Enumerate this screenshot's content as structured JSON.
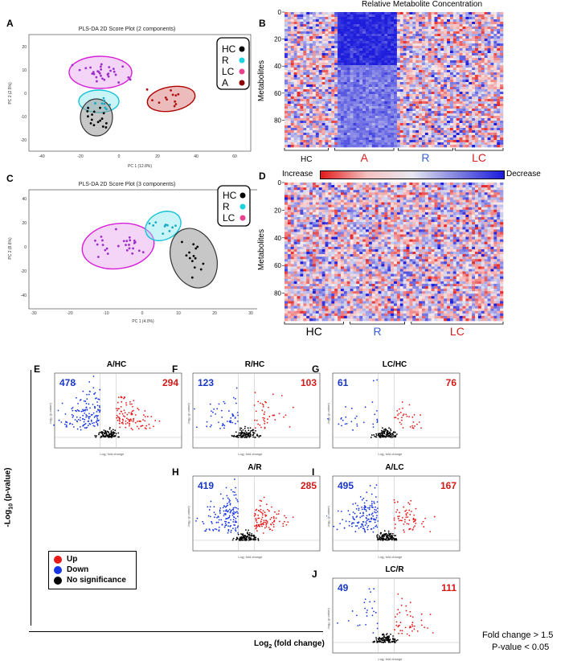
{
  "panels": {
    "A": {
      "letter": "A",
      "title": "PLS-DA 2D Score Plot (2 components)",
      "xlabel": "PC 1 (12.8%)",
      "ylabel": "PC 2 (2.5%)",
      "xticks": [
        "-40",
        "-20",
        "0",
        "20",
        "40",
        "60"
      ],
      "yticks": [
        "20",
        "10",
        "0",
        "-10",
        "-20"
      ],
      "legend": [
        {
          "label": "HC",
          "color": "#000000"
        },
        {
          "label": "R",
          "color": "#19d3de"
        },
        {
          "label": "LC",
          "color": "#e8428f"
        },
        {
          "label": "A",
          "color": "#8b0000"
        }
      ]
    },
    "B": {
      "letter": "B",
      "title": "Relative Metabolite Concentration",
      "ylabel": "Metabolites",
      "yticks": [
        "0",
        "20",
        "40",
        "60",
        "80"
      ],
      "groups": [
        {
          "label": "HC",
          "color": "#000000"
        },
        {
          "label": "A",
          "color": "#d62020"
        },
        {
          "label": "R",
          "color": "#3a5fd8"
        },
        {
          "label": "LC",
          "color": "#d62020"
        }
      ]
    },
    "C": {
      "letter": "C",
      "title": "PLS-DA 2D Score Plot (3 components)",
      "xlabel": "PC 1 (4.0%)",
      "ylabel": "PC 2 (8.6%)",
      "xticks": [
        "-30",
        "-20",
        "-10",
        "0",
        "10",
        "20",
        "30"
      ],
      "yticks": [
        "40",
        "20",
        "0",
        "-20",
        "-40"
      ],
      "legend": [
        {
          "label": "HC",
          "color": "#000000"
        },
        {
          "label": "R",
          "color": "#19d3de"
        },
        {
          "label": "LC",
          "color": "#e8428f"
        }
      ]
    },
    "D": {
      "letter": "D",
      "ylabel": "Metabolites",
      "increase": "Increase",
      "decrease": "Decrease",
      "yticks": [
        "0",
        "20",
        "40",
        "60",
        "80"
      ],
      "groups": [
        {
          "label": "HC",
          "color": "#000000"
        },
        {
          "label": "R",
          "color": "#3a5fd8"
        },
        {
          "label": "LC",
          "color": "#d62020"
        }
      ]
    }
  },
  "volcano": [
    {
      "letter": "E",
      "title": "A/HC",
      "down": "478",
      "up": "294"
    },
    {
      "letter": "F",
      "title": "R/HC",
      "down": "123",
      "up": "103"
    },
    {
      "letter": "G",
      "title": "LC/HC",
      "down": "61",
      "up": "76"
    },
    {
      "letter": "H",
      "title": "A/R",
      "down": "419",
      "up": "285"
    },
    {
      "letter": "I",
      "title": "A/LC",
      "down": "495",
      "up": "167"
    },
    {
      "letter": "J",
      "title": "LC/R",
      "down": "49",
      "up": "111"
    }
  ],
  "volcano_axis": {
    "x": "Log₂ fold change",
    "y": "-log₁₀ (p-value)"
  },
  "shared_axes": {
    "y_main": "-Log",
    "y_sub": "10",
    "y_tail": " (p-value)",
    "x_main": "Log",
    "x_sub": "2",
    "x_tail": " (fold change)"
  },
  "legend": [
    {
      "label": "Up",
      "color": "#e81818"
    },
    {
      "label": "Down",
      "color": "#1836e8"
    },
    {
      "label": "No significance",
      "color": "#000000"
    }
  ],
  "criteria": {
    "fc": "Fold change > 1.5",
    "p": "P-value < 0.05"
  }
}
